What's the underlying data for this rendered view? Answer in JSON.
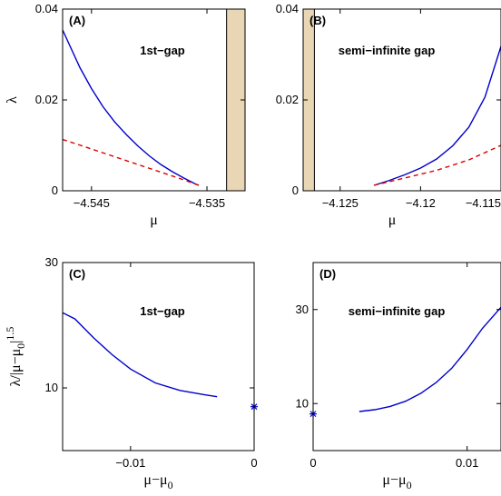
{
  "chart_data": [
    {
      "type": "line",
      "panel_label": "(A)",
      "annotation": "1st−gap",
      "xlabel": "μ",
      "ylabel": "λ",
      "xlim": [
        -4.5475,
        -4.5317
      ],
      "ylim": [
        0,
        0.04
      ],
      "xticks": [
        -4.545,
        -4.535
      ],
      "xtick_labels": [
        "−4.545",
        "−4.535"
      ],
      "yticks": [
        0,
        0.02,
        0.04
      ],
      "ytick_labels": [
        "0",
        "0.02",
        "0.04"
      ],
      "shaded_band": [
        -4.5333,
        -4.5317
      ],
      "shaded_color": "#e8d6b4",
      "series": [
        {
          "style": "solid",
          "color": "#0000cc",
          "x": [
            -4.5475,
            -4.546,
            -4.545,
            -4.544,
            -4.543,
            -4.542,
            -4.541,
            -4.54,
            -4.539,
            -4.538,
            -4.537,
            -4.536,
            -4.5357
          ],
          "y": [
            0.0354,
            0.0271,
            0.0225,
            0.0185,
            0.0152,
            0.0124,
            0.0099,
            0.0077,
            0.0058,
            0.0042,
            0.0028,
            0.0015,
            0.0012
          ]
        },
        {
          "style": "dashed",
          "color": "#dd0000",
          "x": [
            -4.5475,
            -4.545,
            -4.543,
            -4.541,
            -4.539,
            -4.537,
            -4.5357
          ],
          "y": [
            0.0113,
            0.0092,
            0.0075,
            0.0058,
            0.0041,
            0.0024,
            0.0012
          ]
        }
      ]
    },
    {
      "type": "line",
      "panel_label": "(B)",
      "annotation": "semi−infinite gap",
      "xlabel": "μ",
      "ylabel": "",
      "xlim": [
        -4.1273,
        -4.115
      ],
      "ylim": [
        0,
        0.04
      ],
      "xticks": [
        -4.125,
        -4.12,
        -4.115
      ],
      "xtick_labels": [
        "−4.125",
        "−4.12",
        "−4.115"
      ],
      "yticks": [
        0,
        0.02,
        0.04
      ],
      "ytick_labels": [
        "0",
        "0.02",
        "0.04"
      ],
      "shaded_band": [
        -4.1273,
        -4.1266
      ],
      "shaded_color": "#e8d6b4",
      "series": [
        {
          "style": "solid",
          "color": "#0000cc",
          "x": [
            -4.1229,
            -4.122,
            -4.121,
            -4.12,
            -4.119,
            -4.118,
            -4.117,
            -4.116,
            -4.115
          ],
          "y": [
            0.0012,
            0.0022,
            0.0035,
            0.005,
            0.007,
            0.0099,
            0.014,
            0.0206,
            0.0318
          ]
        },
        {
          "style": "dashed",
          "color": "#dd0000",
          "x": [
            -4.1229,
            -4.121,
            -4.119,
            -4.117,
            -4.115
          ],
          "y": [
            0.0012,
            0.0028,
            0.0045,
            0.0068,
            0.01
          ]
        }
      ]
    },
    {
      "type": "line",
      "panel_label": "(C)",
      "annotation": "1st−gap",
      "xlabel": "μ−μ",
      "xlabel_sub": "0",
      "ylabel": "λ/|μ−μ",
      "ylabel_sub": "0",
      "ylabel_tail": "|",
      "ylabel_sup": "1.5",
      "xlim": [
        -0.0155,
        0
      ],
      "ylim": [
        0,
        30
      ],
      "xticks": [
        -0.01,
        0
      ],
      "xtick_labels": [
        "−0.01",
        "0"
      ],
      "yticks": [
        10,
        30
      ],
      "ytick_labels": [
        "10",
        "30"
      ],
      "marker": {
        "x": 0,
        "y": 7.0,
        "symbol": "*",
        "color": "#0000cc"
      },
      "series": [
        {
          "style": "solid",
          "color": "#0000cc",
          "x": [
            -0.0155,
            -0.0145,
            -0.013,
            -0.0115,
            -0.01,
            -0.008,
            -0.006,
            -0.004,
            -0.003
          ],
          "y": [
            22.0,
            21.0,
            18.0,
            15.3,
            13.0,
            10.8,
            9.6,
            8.9,
            8.6
          ]
        }
      ]
    },
    {
      "type": "line",
      "panel_label": "(D)",
      "annotation": "semi−infinite gap",
      "xlabel": "μ−μ",
      "xlabel_sub": "0",
      "ylabel": "",
      "xlim": [
        0,
        0.0122
      ],
      "ylim": [
        0,
        40
      ],
      "xticks": [
        0,
        0.01
      ],
      "xtick_labels": [
        "0",
        "0.01"
      ],
      "yticks": [
        10,
        30
      ],
      "ytick_labels": [
        "10",
        "30"
      ],
      "marker": {
        "x": 0,
        "y": 7.8,
        "symbol": "*",
        "color": "#0000cc"
      },
      "series": [
        {
          "style": "solid",
          "color": "#0000cc",
          "x": [
            0.003,
            0.004,
            0.005,
            0.006,
            0.007,
            0.008,
            0.009,
            0.01,
            0.011,
            0.0122
          ],
          "y": [
            8.3,
            8.7,
            9.4,
            10.5,
            12.2,
            14.5,
            17.5,
            21.5,
            26.0,
            30.5
          ]
        }
      ]
    }
  ]
}
